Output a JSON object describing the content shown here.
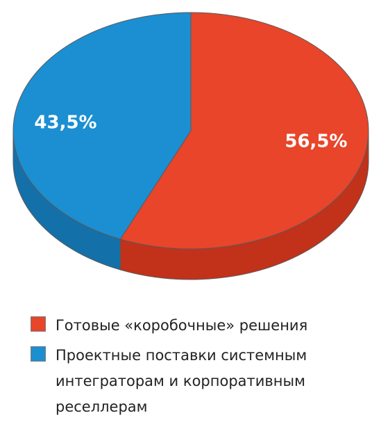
{
  "chart_data": {
    "type": "pie",
    "style": "3d",
    "slices": [
      {
        "label": "Готовые «коробочные» решения",
        "value": 56.5,
        "display": "56,5%",
        "color": "#e8452a",
        "side_color": "#c2311a"
      },
      {
        "label": "Проектные поставки системным интеграторам и корпоративным реселлерам",
        "value": 43.5,
        "display": "43,5%",
        "color": "#1b8fd2",
        "side_color": "#1470a8"
      }
    ],
    "legend_position": "bottom"
  },
  "legend": {
    "items": [
      {
        "label": "Готовые «коробочные» решения",
        "color": "#e8452a"
      },
      {
        "label": "Проектные поставки системным интеграторам и корпоративным реселлерам",
        "color": "#1b8fd2"
      }
    ]
  }
}
